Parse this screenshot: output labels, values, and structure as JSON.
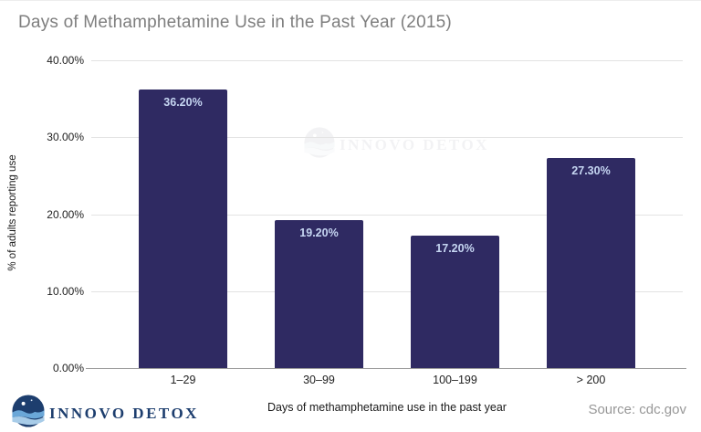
{
  "title": "Days of Methamphetamine Use in the Past Year (2015)",
  "source": "Source: cdc.gov",
  "logo": {
    "text": "INNOVO DETOX"
  },
  "watermark": {
    "text": "INNOVO DETOX"
  },
  "colors": {
    "bar": "#2f2a62",
    "bar_label": "#c6d6f2",
    "title_text": "#7e7e7e",
    "gridline": "#e3e3e3",
    "axis_line": "#9b9b9b",
    "source_text": "#979797",
    "logo_navy": "#1d3e6e",
    "logo_wave_dark": "#6aa7d8",
    "logo_wave_light": "#a8cce8"
  },
  "chart_data": {
    "type": "bar",
    "title": "Days of Methamphetamine Use in the Past Year (2015)",
    "categories": [
      "1–29",
      "30–99",
      "100–199",
      "> 200"
    ],
    "values": [
      36.2,
      19.2,
      17.2,
      27.3
    ],
    "value_labels": [
      "36.20%",
      "19.20%",
      "17.20%",
      "27.30%"
    ],
    "xlabel": "Days of methamphetamine use in the past year",
    "ylabel": "% of adults reporting use",
    "ylim": [
      0,
      40
    ],
    "yticks": [
      "0.00%",
      "10.00%",
      "20.00%",
      "30.00%",
      "40.00%"
    ],
    "grid": true,
    "legend": "none",
    "bar_color": "#2f2a62",
    "bar_label_color": "#c6d6f2"
  }
}
